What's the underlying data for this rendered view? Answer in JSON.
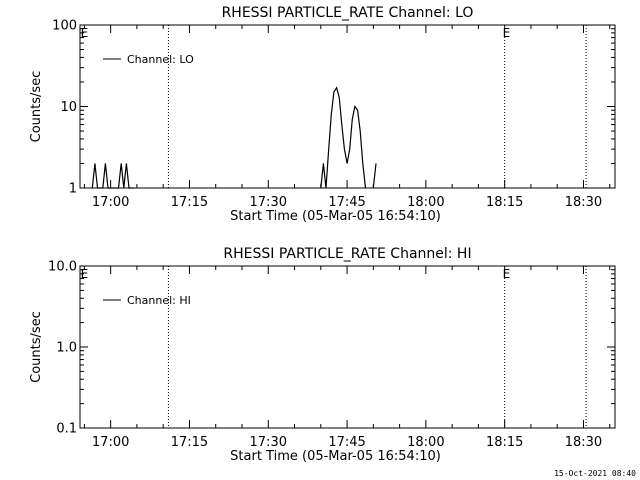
{
  "footer_timestamp": "15-Oct-2021 08:40",
  "chart_data": [
    {
      "type": "line",
      "title": "RHESSI PARTICLE_RATE Channel: LO",
      "xlabel": "Start Time (05-Mar-05 16:54:10)",
      "ylabel": "Counts/sec",
      "y_scale": "log",
      "ylim": [
        1,
        100
      ],
      "y_ticks": [
        {
          "v": 1,
          "label": "1"
        },
        {
          "v": 10,
          "label": "10"
        },
        {
          "v": 100,
          "label": "100"
        }
      ],
      "xlim": [
        "16:54:10",
        "18:36:00"
      ],
      "x_ticks": [
        "17:00",
        "17:15",
        "17:30",
        "17:45",
        "18:00",
        "18:15",
        "18:30"
      ],
      "vertical_markers": [
        "17:11:00",
        "18:15:00",
        "18:30:30"
      ],
      "marker_labels": [
        {
          "text": "E",
          "at": "16:55:00"
        },
        {
          "text": "E",
          "at": "18:15:20"
        }
      ],
      "legend": {
        "position": "top-left",
        "label": "Channel: LO"
      },
      "series": [
        {
          "name": "Channel: LO",
          "segments": [
            [
              [
                "16:56:30",
                1
              ],
              [
                "16:57:00",
                2
              ],
              [
                "16:57:30",
                1
              ],
              [
                "16:58:30",
                1
              ],
              [
                "16:59:00",
                2
              ],
              [
                "16:59:30",
                1
              ],
              [
                "17:01:30",
                1
              ],
              [
                "17:02:00",
                2
              ],
              [
                "17:02:30",
                1
              ],
              [
                "17:03:00",
                2
              ],
              [
                "17:03:30",
                1
              ],
              [
                "17:04:30",
                1
              ]
            ],
            [
              [
                "17:40:00",
                1
              ],
              [
                "17:40:30",
                2
              ],
              [
                "17:41:00",
                1
              ],
              [
                "17:41:30",
                3
              ],
              [
                "17:42:00",
                8
              ],
              [
                "17:42:30",
                15
              ],
              [
                "17:43:00",
                17
              ],
              [
                "17:43:30",
                13
              ],
              [
                "17:44:00",
                6
              ],
              [
                "17:44:30",
                3
              ],
              [
                "17:45:00",
                2
              ],
              [
                "17:45:30",
                3
              ],
              [
                "17:46:00",
                7
              ],
              [
                "17:46:30",
                10
              ],
              [
                "17:47:00",
                9
              ],
              [
                "17:47:30",
                5
              ],
              [
                "17:48:00",
                2
              ],
              [
                "17:48:30",
                1
              ]
            ],
            [
              [
                "17:50:00",
                1
              ],
              [
                "17:50:30",
                2
              ]
            ]
          ]
        }
      ]
    },
    {
      "type": "line",
      "title": "RHESSI PARTICLE_RATE Channel: HI",
      "xlabel": "Start Time (05-Mar-05 16:54:10)",
      "ylabel": "Counts/sec",
      "y_scale": "log",
      "ylim": [
        0.1,
        10
      ],
      "y_ticks": [
        {
          "v": 0.1,
          "label": "0.1"
        },
        {
          "v": 1,
          "label": "1.0"
        },
        {
          "v": 10,
          "label": "10.0"
        }
      ],
      "xlim": [
        "16:54:10",
        "18:36:00"
      ],
      "x_ticks": [
        "17:00",
        "17:15",
        "17:30",
        "17:45",
        "18:00",
        "18:15",
        "18:30"
      ],
      "vertical_markers": [
        "17:11:00",
        "18:15:00",
        "18:30:30"
      ],
      "marker_labels": [
        {
          "text": "E",
          "at": "16:55:00"
        },
        {
          "text": "E",
          "at": "18:15:20"
        }
      ],
      "legend": {
        "position": "top-left",
        "label": "Channel: HI"
      },
      "series": [
        {
          "name": "Channel: HI",
          "segments": []
        }
      ]
    }
  ]
}
